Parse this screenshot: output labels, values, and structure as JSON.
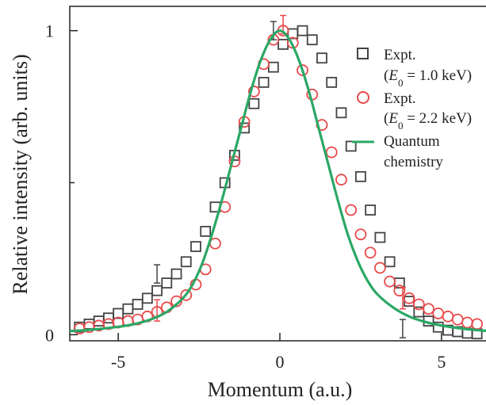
{
  "chart_data": {
    "type": "scatter",
    "xlabel": "Momentum (a.u.)",
    "ylabel": "Relative intensity (arb. units)",
    "xlim": [
      -6.5,
      6.5
    ],
    "ylim": [
      -0.02,
      1.08
    ],
    "xticks": [
      -5,
      0,
      5
    ],
    "xtick_labels": [
      "-5",
      "0",
      "5"
    ],
    "yticks": [
      0,
      1
    ],
    "ytick_labels": [
      "0",
      "1"
    ],
    "minor_yticks": [
      0.5
    ],
    "grid": false,
    "legend_position": "top-right",
    "series": [
      {
        "name_line1": "Expt.",
        "name_line2": "(E0 = 1.0 keV)",
        "marker": "square",
        "color": "#444444",
        "x": [
          -6.2,
          -5.9,
          -5.6,
          -5.3,
          -5.0,
          -4.7,
          -4.4,
          -4.1,
          -3.8,
          -3.5,
          -3.2,
          -2.9,
          -2.6,
          -2.3,
          -2.0,
          -1.7,
          -1.4,
          -1.1,
          -0.8,
          -0.5,
          -0.2,
          0.1,
          0.4,
          0.7,
          1.0,
          1.3,
          1.6,
          1.9,
          2.2,
          2.5,
          2.8,
          3.1,
          3.4,
          3.7,
          4.0,
          4.3,
          4.6,
          4.9,
          5.2,
          5.5,
          5.8,
          6.1
        ],
        "y": [
          0.025,
          0.035,
          0.045,
          0.055,
          0.07,
          0.085,
          0.1,
          0.12,
          0.145,
          0.17,
          0.2,
          0.24,
          0.29,
          0.34,
          0.42,
          0.5,
          0.59,
          0.68,
          0.76,
          0.83,
          0.88,
          0.955,
          0.99,
          1.0,
          0.97,
          0.91,
          0.83,
          0.73,
          0.62,
          0.52,
          0.41,
          0.32,
          0.24,
          0.17,
          0.11,
          0.075,
          0.045,
          0.025,
          0.015,
          0.01,
          0.005,
          0.003
        ],
        "error_bars": [
          {
            "x": -3.8,
            "y": 0.2,
            "err": 0.03
          },
          {
            "x": -0.2,
            "y": 1.0,
            "err": 0.03
          },
          {
            "x": 3.8,
            "y": 0.02,
            "err": 0.03
          }
        ]
      },
      {
        "name_line1": "Expt.",
        "name_line2": "(E0 = 2.2 keV)",
        "marker": "circle",
        "color": "#e8494a",
        "x": [
          -6.2,
          -5.9,
          -5.6,
          -5.3,
          -5.0,
          -4.7,
          -4.4,
          -4.1,
          -3.8,
          -3.5,
          -3.2,
          -2.9,
          -2.6,
          -2.3,
          -2.0,
          -1.7,
          -1.4,
          -1.1,
          -0.8,
          -0.5,
          -0.2,
          0.1,
          0.4,
          0.7,
          1.0,
          1.3,
          1.6,
          1.9,
          2.2,
          2.5,
          2.8,
          3.1,
          3.4,
          3.7,
          4.0,
          4.3,
          4.6,
          4.9,
          5.2,
          5.5,
          5.8,
          6.1
        ],
        "y": [
          0.02,
          0.025,
          0.03,
          0.035,
          0.04,
          0.045,
          0.05,
          0.06,
          0.075,
          0.09,
          0.11,
          0.13,
          0.165,
          0.215,
          0.3,
          0.42,
          0.57,
          0.7,
          0.8,
          0.89,
          0.97,
          1.0,
          0.96,
          0.87,
          0.79,
          0.69,
          0.6,
          0.51,
          0.41,
          0.33,
          0.27,
          0.22,
          0.175,
          0.145,
          0.12,
          0.1,
          0.085,
          0.07,
          0.06,
          0.05,
          0.04,
          0.035
        ],
        "error_bars": [
          {
            "x": -3.8,
            "y": 0.08,
            "err": 0.035
          },
          {
            "x": 0.1,
            "y": 1.02,
            "err": 0.03
          },
          {
            "x": 3.8,
            "y": 0.12,
            "err": 0.035
          }
        ]
      },
      {
        "name_line1": "Quantum",
        "name_line2": "chemistry",
        "marker": "line",
        "color": "#2aa865",
        "x": [
          -6.5,
          -6.0,
          -5.5,
          -5.0,
          -4.5,
          -4.0,
          -3.5,
          -3.0,
          -2.7,
          -2.4,
          -2.1,
          -1.8,
          -1.5,
          -1.2,
          -0.9,
          -0.6,
          -0.3,
          0.0,
          0.3,
          0.6,
          0.9,
          1.2,
          1.5,
          1.8,
          2.1,
          2.4,
          2.7,
          3.0,
          3.5,
          4.0,
          4.5,
          5.0,
          5.5,
          6.0,
          6.5
        ],
        "y": [
          0.012,
          0.015,
          0.02,
          0.026,
          0.035,
          0.05,
          0.075,
          0.12,
          0.165,
          0.235,
          0.33,
          0.44,
          0.56,
          0.68,
          0.8,
          0.9,
          0.97,
          1.0,
          0.97,
          0.9,
          0.8,
          0.68,
          0.56,
          0.44,
          0.33,
          0.245,
          0.18,
          0.135,
          0.09,
          0.06,
          0.042,
          0.03,
          0.022,
          0.016,
          0.012
        ]
      }
    ]
  },
  "legend": {
    "entry1_line1": "Expt.",
    "entry1_line2_prefix": "(",
    "entry1_line2_var": "E",
    "entry1_line2_sub": "0",
    "entry1_line2_rest": " = 1.0 keV)",
    "entry2_line1": "Expt.",
    "entry2_line2_prefix": "(",
    "entry2_line2_var": "E",
    "entry2_line2_sub": "0",
    "entry2_line2_rest": " = 2.2 keV)",
    "entry3_line1": "Quantum",
    "entry3_line2": "chemistry"
  }
}
